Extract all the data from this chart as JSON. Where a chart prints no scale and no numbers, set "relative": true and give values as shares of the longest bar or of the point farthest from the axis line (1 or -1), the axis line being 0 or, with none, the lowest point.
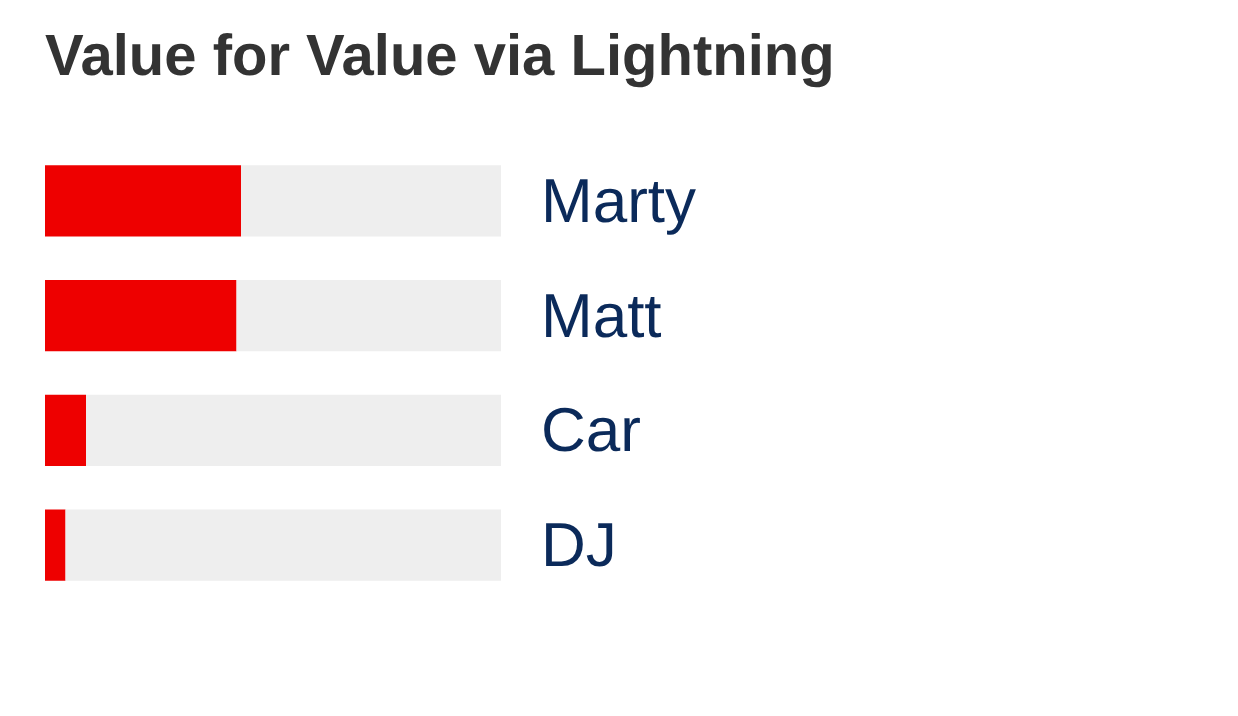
{
  "chart_data": {
    "type": "bar",
    "title": "Value for Value via Lightning",
    "orientation": "horizontal",
    "stacked": true,
    "relative": true,
    "categories": [
      "Marty",
      "Matt",
      "Car",
      "DJ"
    ],
    "series": [
      {
        "color": "#ee0000",
        "values": [
          0.43,
          0.42,
          0.09,
          0.045
        ]
      },
      {
        "color": "#eeeeee",
        "values": [
          0.57,
          0.58,
          0.91,
          0.955
        ]
      }
    ]
  }
}
